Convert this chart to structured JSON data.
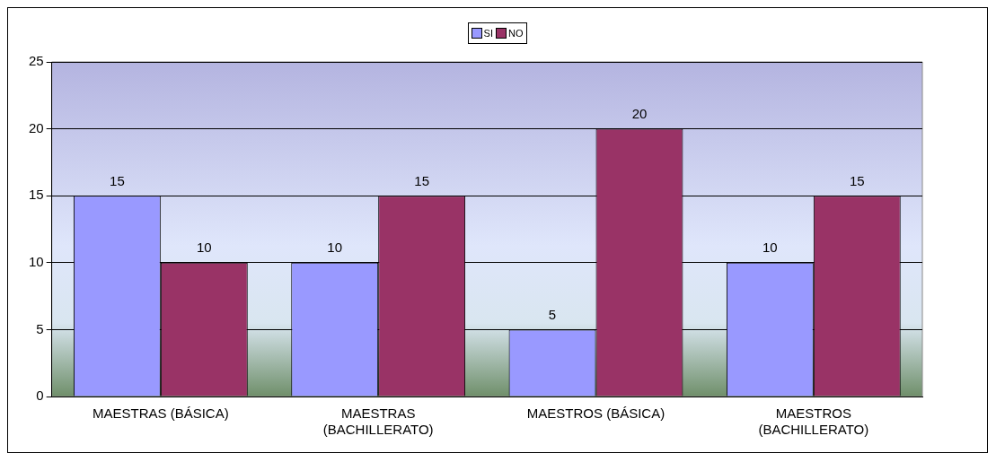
{
  "chart_data": {
    "type": "bar",
    "categories": [
      "MAESTRAS (BÁSICA)",
      "MAESTRAS (BACHILLERATO)",
      "MAESTROS (BÁSICA)",
      "MAESTROS (BACHILLERATO)"
    ],
    "series": [
      {
        "name": "SI",
        "color": "#9999ff",
        "values": [
          15,
          10,
          5,
          10
        ]
      },
      {
        "name": "NO",
        "color": "#993366",
        "values": [
          10,
          15,
          20,
          15
        ]
      }
    ],
    "ylim": [
      0,
      25
    ],
    "yticks": [
      0,
      5,
      10,
      15,
      20,
      25
    ],
    "grid": "y",
    "legend": "top",
    "data_labels": true
  }
}
